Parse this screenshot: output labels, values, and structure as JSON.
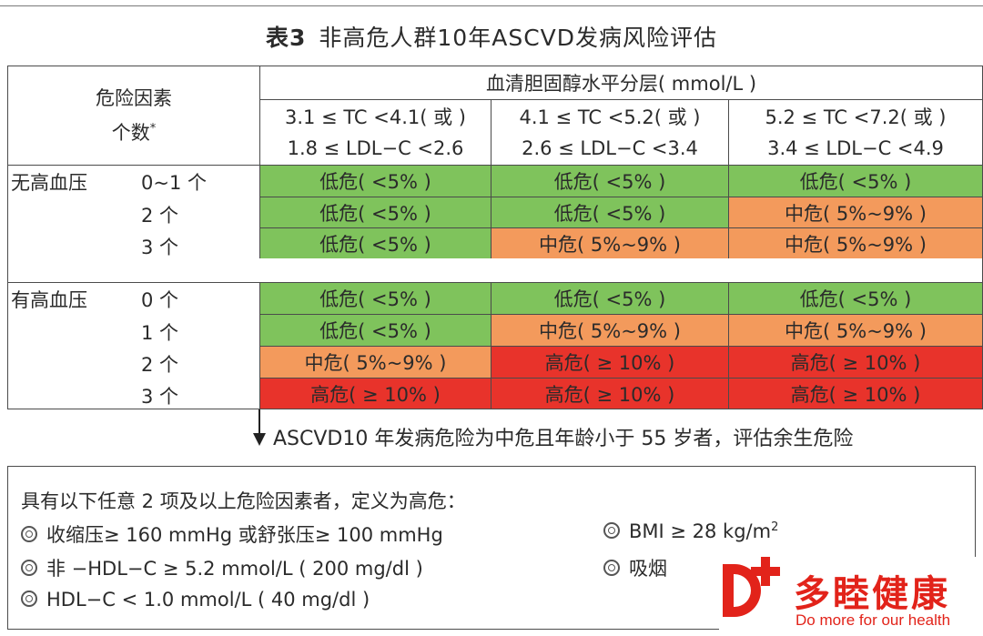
{
  "title": {
    "label": "表3",
    "text": "非高危人群10年ASCVD发病风险评估"
  },
  "table": {
    "risk_header_l1": "危险因素",
    "risk_header_l2": "个数",
    "risk_header_mark": "*",
    "chol_header": "血清胆固醇水平分层( mmol/L )",
    "columns": [
      {
        "l1": "3.1 ≤ TC <4.1( 或 )",
        "l2": "1.8 ≤ LDL−C <2.6"
      },
      {
        "l1": "4.1 ≤ TC <5.2( 或 )",
        "l2": "2.6 ≤ LDL−C <3.4"
      },
      {
        "l1": "5.2 ≤ TC <7.2( 或 )",
        "l2": "3.4 ≤ LDL−C <4.9"
      }
    ],
    "groups": [
      {
        "name": "无高血压",
        "rows": [
          {
            "count": "0~1 个",
            "cells": [
              "低危( <5% )",
              "低危( <5% )",
              "低危( <5% )"
            ],
            "levels": [
              "low",
              "low",
              "low"
            ]
          },
          {
            "count": "2 个",
            "cells": [
              "低危( <5% )",
              "低危( <5% )",
              "中危( 5%~9% )"
            ],
            "levels": [
              "low",
              "low",
              "mid"
            ]
          },
          {
            "count": "3 个",
            "cells": [
              "低危( <5% )",
              "中危( 5%~9% )",
              "中危( 5%~9% )"
            ],
            "levels": [
              "low",
              "mid",
              "mid"
            ]
          }
        ]
      },
      {
        "name": "有高血压",
        "rows": [
          {
            "count": "0 个",
            "cells": [
              "低危( <5% )",
              "低危( <5% )",
              "低危( <5% )"
            ],
            "levels": [
              "low",
              "low",
              "low"
            ]
          },
          {
            "count": "1 个",
            "cells": [
              "低危( <5% )",
              "中危( 5%~9% )",
              "中危( 5%~9% )"
            ],
            "levels": [
              "low",
              "mid",
              "mid"
            ]
          },
          {
            "count": "2 个",
            "cells": [
              "中危( 5%~9% )",
              "高危( ≥ 10% )",
              "高危( ≥ 10% )"
            ],
            "levels": [
              "mid",
              "high",
              "high"
            ]
          },
          {
            "count": "3 个",
            "cells": [
              "高危( ≥ 10% )",
              "高危( ≥ 10% )",
              "高危( ≥ 10% )"
            ],
            "levels": [
              "high",
              "high",
              "high"
            ]
          }
        ]
      }
    ]
  },
  "arrow_note": "ASCVD10 年发病危险为中危且年龄小于 55 岁者，评估余生危险",
  "criteria": {
    "heading": "具有以下任意 2 项及以上危险因素者，定义为高危：",
    "left": [
      "收缩压≥ 160 mmHg 或舒张压≥ 100 mmHg",
      "非 −HDL−C ≥ 5.2 mmol/L ( 200 mg/dl )",
      "HDL−C < 1.0 mmol/L ( 40 mg/dl )"
    ],
    "right_bmi": "BMI ≥ 28 kg/m",
    "right_bmi_sup": "2",
    "right_smoke": "吸烟"
  },
  "logo": {
    "cn": "多睦健康",
    "en_a": "Do mo",
    "en_b": "re for our health"
  },
  "colors": {
    "low": "#7fc35c",
    "mid": "#f39a5c",
    "high": "#e8332b",
    "brand": "#e2231a"
  }
}
